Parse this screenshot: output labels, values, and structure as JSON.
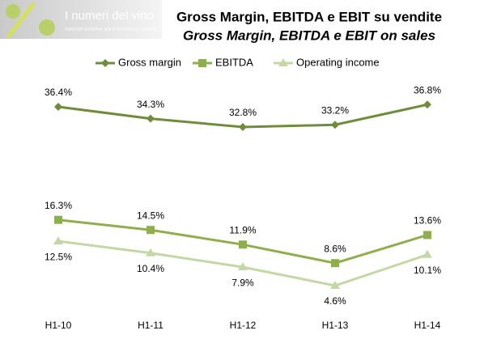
{
  "logo": {
    "title": "I numeri del vino",
    "tagline": "Statistiche produttive, dati di mercato e di consumo"
  },
  "chart_data": {
    "type": "line",
    "title": "Gross Margin, EBITDA e EBIT su vendite",
    "subtitle": "Gross Margin, EBITDA e EBIT on sales",
    "categories": [
      "H1-10",
      "H1-11",
      "H1-12",
      "H1-13",
      "H1-14"
    ],
    "ylim": [
      0,
      40
    ],
    "legend": "top",
    "series": [
      {
        "name": "Gross margin",
        "color": "#6f8c3c",
        "marker": "diamond",
        "values": [
          36.4,
          34.3,
          32.8,
          33.2,
          36.8
        ],
        "value_labels": [
          "36.4%",
          "34.3%",
          "32.8%",
          "33.2%",
          "36.8%"
        ]
      },
      {
        "name": "EBITDA",
        "color": "#8fae4c",
        "marker": "square",
        "values": [
          16.3,
          14.5,
          11.9,
          8.6,
          13.6
        ],
        "value_labels": [
          "16.3%",
          "14.5%",
          "11.9%",
          "8.6%",
          "13.6%"
        ]
      },
      {
        "name": "Operating income",
        "color": "#c4d8a6",
        "marker": "triangle",
        "values": [
          12.5,
          10.4,
          7.9,
          4.6,
          10.1
        ],
        "value_labels": [
          "12.5%",
          "10.4%",
          "7.9%",
          "4.6%",
          "10.1%"
        ]
      }
    ]
  }
}
